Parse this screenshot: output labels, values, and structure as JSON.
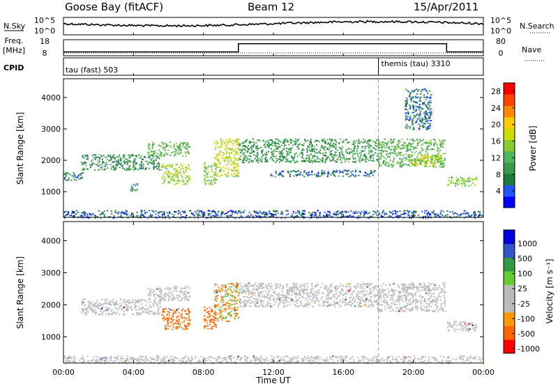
{
  "header": {
    "station": "Goose Bay (fitACF)",
    "beam": "Beam 12",
    "date": "15/Apr/2011"
  },
  "params": {
    "nsky_label": "N.Sky",
    "nsearch_label": "N.Search",
    "freq_label_top": "Freq.",
    "freq_label_unit": "[MHz]",
    "nave_label": "Nave",
    "cpid_label": "CPID",
    "nsky_ticks": [
      "10^5",
      "10^0"
    ],
    "nsearch_ticks": [
      "10^5",
      "10^0"
    ],
    "freq_ticks": [
      "18",
      "8"
    ],
    "nave_ticks": [
      "80",
      "0"
    ],
    "cpid_segments": [
      {
        "label": "tau (fast) 503",
        "start_hour": 0,
        "end_hour": 18
      },
      {
        "label": "themis (tau) 3310",
        "start_hour": 18,
        "end_hour": 24
      }
    ],
    "freq_profile": [
      {
        "hour": 0.0,
        "mhz": 10.4
      },
      {
        "hour": 10.0,
        "mhz": 10.4
      },
      {
        "hour": 10.0,
        "mhz": 15.5
      },
      {
        "hour": 21.9,
        "mhz": 15.5
      },
      {
        "hour": 21.9,
        "mhz": 10.4
      },
      {
        "hour": 24.0,
        "mhz": 10.4
      }
    ]
  },
  "colors": {
    "power_scale": [
      "#0000ff",
      "#2255ff",
      "#1e7b3a",
      "#3a9a4a",
      "#50b85a",
      "#88cc33",
      "#ccdd00",
      "#ffcc00",
      "#ff8800",
      "#ff4400",
      "#ff0000"
    ],
    "velocity_scale": [
      "#ff0000",
      "#ff6600",
      "#ff9900",
      "#bbbbbb",
      "#bbbbbb",
      "#66cc33",
      "#339944",
      "#3355cc",
      "#0000dd"
    ]
  },
  "chart_data": [
    {
      "type": "heatmap",
      "title": "",
      "xlabel": "",
      "ylabel": "Slant Range [km]",
      "x_ticks": [
        "00:00",
        "04:00",
        "08:00",
        "12:00",
        "16:00",
        "20:00",
        "00:00"
      ],
      "xlim_hours": [
        0,
        24
      ],
      "y_ticks": [
        "1000",
        "2000",
        "3000",
        "4000"
      ],
      "ylim": [
        180,
        4600
      ],
      "colorbar": {
        "label": "Power [dB]",
        "ticks": [
          "4",
          "8",
          "12",
          "16",
          "20",
          "24",
          "28"
        ],
        "range": [
          0,
          30
        ]
      },
      "regions": [
        {
          "hour_start": 0.0,
          "hour_end": 1.2,
          "range_start": 1380,
          "range_end": 1640,
          "power": 7
        },
        {
          "hour_start": 1.0,
          "hour_end": 5.6,
          "range_start": 1700,
          "range_end": 2200,
          "power": 8
        },
        {
          "hour_start": 3.8,
          "hour_end": 4.2,
          "range_start": 1050,
          "range_end": 1300,
          "power": 6
        },
        {
          "hour_start": 4.8,
          "hour_end": 7.2,
          "range_start": 2150,
          "range_end": 2600,
          "power": 12
        },
        {
          "hour_start": 5.6,
          "hour_end": 7.2,
          "range_start": 1250,
          "range_end": 1900,
          "power": 16
        },
        {
          "hour_start": 8.0,
          "hour_end": 8.7,
          "range_start": 1250,
          "range_end": 1950,
          "power": 14
        },
        {
          "hour_start": 8.6,
          "hour_end": 10.0,
          "range_start": 1500,
          "range_end": 2700,
          "power": 17
        },
        {
          "hour_start": 10.0,
          "hour_end": 18.0,
          "range_start": 1950,
          "range_end": 2700,
          "power": 9
        },
        {
          "hour_start": 11.8,
          "hour_end": 17.8,
          "range_start": 1500,
          "range_end": 1700,
          "power": 5
        },
        {
          "hour_start": 17.9,
          "hour_end": 21.8,
          "range_start": 1800,
          "range_end": 2700,
          "power": 12
        },
        {
          "hour_start": 19.8,
          "hour_end": 21.6,
          "range_start": 1850,
          "range_end": 2200,
          "power": 18
        },
        {
          "hour_start": 19.5,
          "hour_end": 21.0,
          "range_start": 3000,
          "range_end": 4300,
          "power": 5
        },
        {
          "hour_start": 21.9,
          "hour_end": 23.6,
          "range_start": 1200,
          "range_end": 1500,
          "power": 14
        },
        {
          "hour_start": 0.0,
          "hour_end": 24.0,
          "range_start": 180,
          "range_end": 420,
          "power": 4
        }
      ]
    },
    {
      "type": "heatmap",
      "title": "",
      "xlabel": "Time UT",
      "ylabel": "Slant Range [km]",
      "x_ticks": [
        "00:00",
        "04:00",
        "08:00",
        "12:00",
        "16:00",
        "20:00",
        "00:00"
      ],
      "xlim_hours": [
        0,
        24
      ],
      "y_ticks": [
        "1000",
        "2000",
        "3000",
        "4000"
      ],
      "ylim": [
        180,
        4600
      ],
      "colorbar": {
        "label": "Velocity [m s⁻¹]",
        "ticks": [
          "1000",
          "500",
          "100",
          "25",
          "-25",
          "-100",
          "-500",
          "-1000"
        ]
      },
      "regions": [
        {
          "hour_start": 1.0,
          "hour_end": 5.6,
          "range_start": 1700,
          "range_end": 2200,
          "velocity": 0
        },
        {
          "hour_start": 4.8,
          "hour_end": 7.2,
          "range_start": 2150,
          "range_end": 2600,
          "velocity": 0
        },
        {
          "hour_start": 5.6,
          "hour_end": 7.2,
          "range_start": 1250,
          "range_end": 1900,
          "velocity": -200
        },
        {
          "hour_start": 8.0,
          "hour_end": 8.7,
          "range_start": 1250,
          "range_end": 1950,
          "velocity": -300
        },
        {
          "hour_start": 8.6,
          "hour_end": 10.0,
          "range_start": 1500,
          "range_end": 2700,
          "velocity": -60
        },
        {
          "hour_start": 10.0,
          "hour_end": 18.0,
          "range_start": 1950,
          "range_end": 2700,
          "velocity": 0
        },
        {
          "hour_start": 17.9,
          "hour_end": 21.8,
          "range_start": 1800,
          "range_end": 2700,
          "velocity": 0
        },
        {
          "hour_start": 21.9,
          "hour_end": 23.6,
          "range_start": 1200,
          "range_end": 1500,
          "velocity": 0
        },
        {
          "hour_start": 0.0,
          "hour_end": 24.0,
          "range_start": 180,
          "range_end": 420,
          "velocity": 0
        }
      ]
    }
  ]
}
